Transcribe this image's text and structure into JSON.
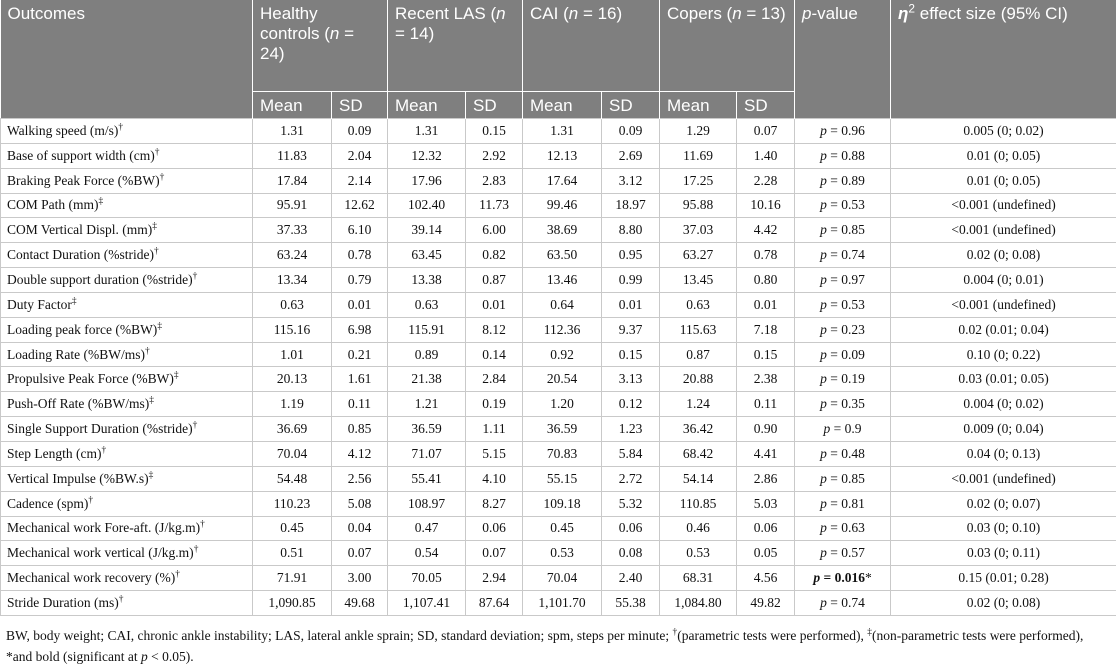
{
  "table": {
    "header": {
      "outcome": [
        {
          "text": "Outcomes"
        }
      ],
      "groups": [
        [
          {
            "text": "Healthy controls ("
          },
          {
            "text": "n",
            "italic": true
          },
          {
            "text": " = 24)"
          }
        ],
        [
          {
            "text": "Recent LAS ("
          },
          {
            "text": "n",
            "italic": true
          },
          {
            "text": " = 14)"
          }
        ],
        [
          {
            "text": "CAI ("
          },
          {
            "text": "n",
            "italic": true
          },
          {
            "text": " = 16)"
          }
        ],
        [
          {
            "text": "Copers ("
          },
          {
            "text": "n",
            "italic": true
          },
          {
            "text": " = 13)"
          }
        ]
      ],
      "p_value": [
        {
          "text": "p",
          "italic": true
        },
        {
          "text": "-value"
        }
      ],
      "effect_size": [
        {
          "text": "η",
          "italic": true,
          "bold": true
        },
        {
          "text": "2",
          "sup": true
        },
        {
          "text": " effect size (95% CI)"
        }
      ],
      "subheaders": [
        "Mean",
        "SD",
        "Mean",
        "SD",
        "Mean",
        "SD",
        "Mean",
        "SD"
      ]
    },
    "rows": [
      {
        "outcome": [
          {
            "text": "Walking speed (m/s)"
          },
          {
            "text": "†",
            "sup": true
          }
        ],
        "values": [
          "1.31",
          "0.09",
          "1.31",
          "0.15",
          "1.31",
          "0.09",
          "1.29",
          "0.07"
        ],
        "p_value": [
          {
            "text": "p",
            "italic": true
          },
          {
            "text": " = 0.96"
          }
        ],
        "effect_size": "0.005 (0; 0.02)"
      },
      {
        "outcome": [
          {
            "text": "Base of support width (cm)"
          },
          {
            "text": "†",
            "sup": true
          }
        ],
        "values": [
          "11.83",
          "2.04",
          "12.32",
          "2.92",
          "12.13",
          "2.69",
          "11.69",
          "1.40"
        ],
        "p_value": [
          {
            "text": "p",
            "italic": true
          },
          {
            "text": " = 0.88"
          }
        ],
        "effect_size": "0.01 (0; 0.05)"
      },
      {
        "outcome": [
          {
            "text": "Braking Peak Force (%BW)"
          },
          {
            "text": "†",
            "sup": true
          }
        ],
        "values": [
          "17.84",
          "2.14",
          "17.96",
          "2.83",
          "17.64",
          "3.12",
          "17.25",
          "2.28"
        ],
        "p_value": [
          {
            "text": "p",
            "italic": true
          },
          {
            "text": " = 0.89"
          }
        ],
        "effect_size": "0.01 (0; 0.05)"
      },
      {
        "outcome": [
          {
            "text": "COM Path (mm)"
          },
          {
            "text": "‡",
            "sup": true
          }
        ],
        "values": [
          "95.91",
          "12.62",
          "102.40",
          "11.73",
          "99.46",
          "18.97",
          "95.88",
          "10.16"
        ],
        "p_value": [
          {
            "text": "p",
            "italic": true
          },
          {
            "text": " = 0.53"
          }
        ],
        "effect_size": "<0.001 (undefined)"
      },
      {
        "outcome": [
          {
            "text": "COM Vertical Displ. (mm)"
          },
          {
            "text": "‡",
            "sup": true
          }
        ],
        "values": [
          "37.33",
          "6.10",
          "39.14",
          "6.00",
          "38.69",
          "8.80",
          "37.03",
          "4.42"
        ],
        "p_value": [
          {
            "text": "p",
            "italic": true
          },
          {
            "text": " = 0.85"
          }
        ],
        "effect_size": "<0.001 (undefined)"
      },
      {
        "outcome": [
          {
            "text": "Contact Duration (%stride)"
          },
          {
            "text": "†",
            "sup": true
          }
        ],
        "values": [
          "63.24",
          "0.78",
          "63.45",
          "0.82",
          "63.50",
          "0.95",
          "63.27",
          "0.78"
        ],
        "p_value": [
          {
            "text": "p",
            "italic": true
          },
          {
            "text": " = 0.74"
          }
        ],
        "effect_size": "0.02 (0; 0.08)"
      },
      {
        "outcome": [
          {
            "text": "Double support duration (%stride)"
          },
          {
            "text": "†",
            "sup": true
          }
        ],
        "values": [
          "13.34",
          "0.79",
          "13.38",
          "0.87",
          "13.46",
          "0.99",
          "13.45",
          "0.80"
        ],
        "p_value": [
          {
            "text": "p",
            "italic": true
          },
          {
            "text": " = 0.97"
          }
        ],
        "effect_size": "0.004 (0; 0.01)"
      },
      {
        "outcome": [
          {
            "text": "Duty Factor"
          },
          {
            "text": "‡",
            "sup": true
          }
        ],
        "values": [
          "0.63",
          "0.01",
          "0.63",
          "0.01",
          "0.64",
          "0.01",
          "0.63",
          "0.01"
        ],
        "p_value": [
          {
            "text": "p",
            "italic": true
          },
          {
            "text": " = 0.53"
          }
        ],
        "effect_size": "<0.001 (undefined)"
      },
      {
        "outcome": [
          {
            "text": "Loading peak force (%BW)"
          },
          {
            "text": "‡",
            "sup": true
          }
        ],
        "values": [
          "115.16",
          "6.98",
          "115.91",
          "8.12",
          "112.36",
          "9.37",
          "115.63",
          "7.18"
        ],
        "p_value": [
          {
            "text": "p",
            "italic": true
          },
          {
            "text": " = 0.23"
          }
        ],
        "effect_size": "0.02 (0.01; 0.04)"
      },
      {
        "outcome": [
          {
            "text": "Loading Rate (%BW/ms)"
          },
          {
            "text": "†",
            "sup": true
          }
        ],
        "values": [
          "1.01",
          "0.21",
          "0.89",
          "0.14",
          "0.92",
          "0.15",
          "0.87",
          "0.15"
        ],
        "p_value": [
          {
            "text": "p",
            "italic": true
          },
          {
            "text": " = 0.09"
          }
        ],
        "effect_size": "0.10 (0; 0.22)"
      },
      {
        "outcome": [
          {
            "text": "Propulsive Peak Force (%BW)"
          },
          {
            "text": "‡",
            "sup": true
          }
        ],
        "values": [
          "20.13",
          "1.61",
          "21.38",
          "2.84",
          "20.54",
          "3.13",
          "20.88",
          "2.38"
        ],
        "p_value": [
          {
            "text": "p",
            "italic": true
          },
          {
            "text": " = 0.19"
          }
        ],
        "effect_size": "0.03 (0.01; 0.05)"
      },
      {
        "outcome": [
          {
            "text": "Push-Off Rate (%BW/ms)"
          },
          {
            "text": "‡",
            "sup": true
          }
        ],
        "values": [
          "1.19",
          "0.11",
          "1.21",
          "0.19",
          "1.20",
          "0.12",
          "1.24",
          "0.11"
        ],
        "p_value": [
          {
            "text": "p",
            "italic": true
          },
          {
            "text": " = 0.35"
          }
        ],
        "effect_size": "0.004 (0; 0.02)"
      },
      {
        "outcome": [
          {
            "text": "Single Support Duration (%stride)"
          },
          {
            "text": "†",
            "sup": true
          }
        ],
        "values": [
          "36.69",
          "0.85",
          "36.59",
          "1.11",
          "36.59",
          "1.23",
          "36.42",
          "0.90"
        ],
        "p_value": [
          {
            "text": "p",
            "italic": true
          },
          {
            "text": " = 0.9"
          }
        ],
        "effect_size": "0.009 (0; 0.04)"
      },
      {
        "outcome": [
          {
            "text": "Step Length (cm)"
          },
          {
            "text": "†",
            "sup": true
          }
        ],
        "values": [
          "70.04",
          "4.12",
          "71.07",
          "5.15",
          "70.83",
          "5.84",
          "68.42",
          "4.41"
        ],
        "p_value": [
          {
            "text": "p",
            "italic": true
          },
          {
            "text": " = 0.48"
          }
        ],
        "effect_size": "0.04 (0; 0.13)"
      },
      {
        "outcome": [
          {
            "text": "Vertical Impulse (%BW.s)"
          },
          {
            "text": "‡",
            "sup": true
          }
        ],
        "values": [
          "54.48",
          "2.56",
          "55.41",
          "4.10",
          "55.15",
          "2.72",
          "54.14",
          "2.86"
        ],
        "p_value": [
          {
            "text": "p",
            "italic": true
          },
          {
            "text": " = 0.85"
          }
        ],
        "effect_size": "<0.001 (undefined)"
      },
      {
        "outcome": [
          {
            "text": "Cadence (spm)"
          },
          {
            "text": "†",
            "sup": true
          }
        ],
        "values": [
          "110.23",
          "5.08",
          "108.97",
          "8.27",
          "109.18",
          "5.32",
          "110.85",
          "5.03"
        ],
        "p_value": [
          {
            "text": "p",
            "italic": true
          },
          {
            "text": " = 0.81"
          }
        ],
        "effect_size": "0.02 (0; 0.07)"
      },
      {
        "outcome": [
          {
            "text": "Mechanical work Fore-aft. (J/kg.m)"
          },
          {
            "text": "†",
            "sup": true
          }
        ],
        "values": [
          "0.45",
          "0.04",
          "0.47",
          "0.06",
          "0.45",
          "0.06",
          "0.46",
          "0.06"
        ],
        "p_value": [
          {
            "text": "p",
            "italic": true
          },
          {
            "text": " = 0.63"
          }
        ],
        "effect_size": "0.03 (0; 0.10)"
      },
      {
        "outcome": [
          {
            "text": "Mechanical work vertical (J/kg.m)"
          },
          {
            "text": "†",
            "sup": true
          }
        ],
        "values": [
          "0.51",
          "0.07",
          "0.54",
          "0.07",
          "0.53",
          "0.08",
          "0.53",
          "0.05"
        ],
        "p_value": [
          {
            "text": "p",
            "italic": true
          },
          {
            "text": " = 0.57"
          }
        ],
        "effect_size": "0.03 (0; 0.11)"
      },
      {
        "outcome": [
          {
            "text": "Mechanical work recovery (%)"
          },
          {
            "text": "†",
            "sup": true
          }
        ],
        "values": [
          "71.91",
          "3.00",
          "70.05",
          "2.94",
          "70.04",
          "2.40",
          "68.31",
          "4.56"
        ],
        "p_value": [
          {
            "text": "p",
            "italic": true,
            "bold": true
          },
          {
            "text": " = ",
            "bold": true
          },
          {
            "text": "0.016",
            "bold": true
          },
          {
            "text": "*"
          }
        ],
        "effect_size": "0.15 (0.01; 0.28)"
      },
      {
        "outcome": [
          {
            "text": "Stride Duration (ms)"
          },
          {
            "text": "†",
            "sup": true
          }
        ],
        "values": [
          "1,090.85",
          "49.68",
          "1,107.41",
          "87.64",
          "1,101.70",
          "55.38",
          "1,084.80",
          "49.82"
        ],
        "p_value": [
          {
            "text": "p",
            "italic": true
          },
          {
            "text": " = 0.74"
          }
        ],
        "effect_size": "0.02 (0; 0.08)"
      }
    ]
  },
  "footnote": [
    {
      "text": "BW, body weight; CAI, chronic ankle instability; LAS, lateral ankle sprain; SD, standard deviation; spm, steps per minute; "
    },
    {
      "text": "†",
      "sup": true
    },
    {
      "text": "(parametric tests were performed), "
    },
    {
      "text": "‡",
      "sup": true
    },
    {
      "text": "(non-parametric tests were performed), *and bold (significant at "
    },
    {
      "text": "p",
      "italic": true
    },
    {
      "text": " < 0.05)."
    }
  ]
}
